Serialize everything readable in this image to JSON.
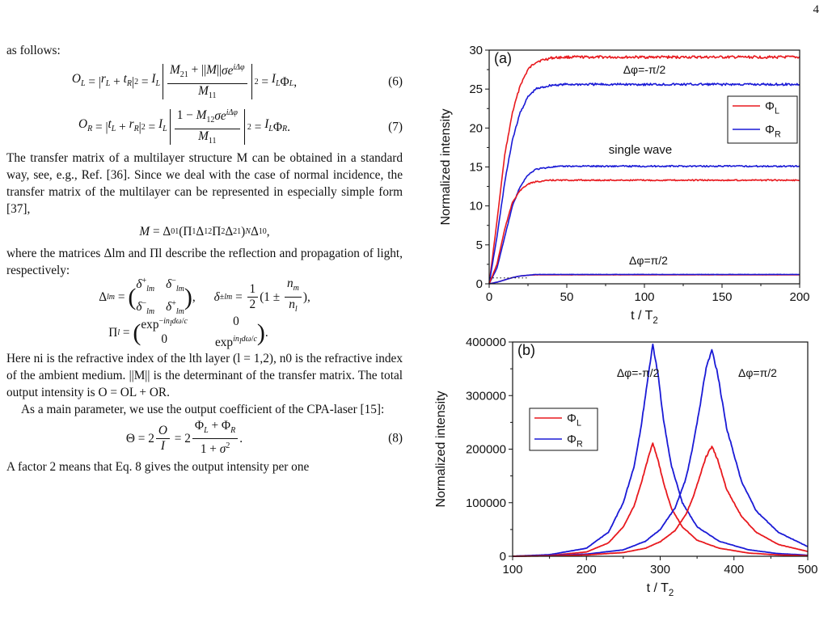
{
  "page_number": "4",
  "text": {
    "p_intro": "as follows:",
    "eq6_label": "(6)",
    "eq7_label": "(7)",
    "p_transfer": "The transfer matrix of a multilayer structure M can be obtained in a standard way, see, e.g., Ref. [36]. Since we deal with the case of normal incidence, the transfer matrix of the multilayer can be represented in especially simple form [37],",
    "p_matrices": "where the matrices Δlm and Πl describe the reflection and propagation of light, respectively:",
    "p_here": "Here ni is the refractive index of the lth layer (l = 1,2), n0 is the refractive index of the ambient medium. ||M|| is the determinant of the transfer matrix. The total output intensity is O = OL + OR.",
    "p_main": "As a main parameter, we use the output coefficient of the CPA-laser [15]:",
    "eq8_label": "(8)",
    "p_factor": "A factor 2 means that Eq. 8 gives the output intensity per one"
  },
  "chart_data": [
    {
      "type": "line",
      "panel_label": "(a)",
      "xlabel": "t / T2",
      "ylabel": "Normalized intensity",
      "xlim": [
        0,
        200
      ],
      "ylim": [
        0,
        30
      ],
      "xticks": [
        0,
        50,
        100,
        150,
        200
      ],
      "yticks": [
        0,
        5,
        10,
        15,
        20,
        25,
        30
      ],
      "legend_position": "right",
      "legend": [
        "ΦL",
        "ΦR"
      ],
      "annotations": [
        "Δφ=-π/2",
        "single wave",
        "Δφ=π/2"
      ],
      "colors": {
        "phi_L": "#e8191e",
        "phi_R": "#1a1ad6"
      },
      "series": [
        {
          "name": "ΦL",
          "group": "Δφ=-π/2",
          "x": [
            0,
            5,
            10,
            15,
            20,
            25,
            30,
            40,
            50,
            75,
            100,
            150,
            200
          ],
          "y": [
            0,
            8,
            16.5,
            22,
            25.5,
            27.5,
            28.5,
            29,
            29.1,
            29.1,
            29.1,
            29.1,
            29.1
          ]
        },
        {
          "name": "ΦR",
          "group": "Δφ=-π/2",
          "x": [
            0,
            5,
            10,
            15,
            20,
            25,
            30,
            40,
            50,
            75,
            100,
            150,
            200
          ],
          "y": [
            0,
            6,
            13,
            18.5,
            22,
            24,
            25,
            25.5,
            25.6,
            25.6,
            25.6,
            25.6,
            25.6
          ]
        },
        {
          "name": "ΦR",
          "group": "single wave",
          "x": [
            0,
            5,
            10,
            15,
            20,
            25,
            30,
            40,
            50,
            75,
            100,
            150,
            200
          ],
          "y": [
            0,
            2,
            6,
            10,
            12.5,
            14,
            14.7,
            15,
            15.1,
            15.1,
            15.1,
            15.1,
            15.1
          ]
        },
        {
          "name": "ΦL",
          "group": "single wave",
          "x": [
            0,
            5,
            10,
            15,
            20,
            25,
            30,
            40,
            50,
            75,
            100,
            150,
            200
          ],
          "y": [
            0,
            2.5,
            7,
            10.5,
            12,
            12.8,
            13.1,
            13.3,
            13.3,
            13.3,
            13.3,
            13.3,
            13.3
          ]
        },
        {
          "name": "ΦL",
          "group": "Δφ=π/2",
          "x": [
            0,
            5,
            10,
            15,
            20,
            25,
            30,
            40,
            50,
            75,
            100,
            150,
            200
          ],
          "y": [
            0,
            0.2,
            0.5,
            0.8,
            1.0,
            1.1,
            1.15,
            1.15,
            1.15,
            1.15,
            1.15,
            1.15,
            1.15
          ]
        },
        {
          "name": "ΦR",
          "group": "Δφ=π/2",
          "x": [
            0,
            5,
            10,
            15,
            20,
            25,
            30,
            40,
            50,
            75,
            100,
            150,
            200
          ],
          "y": [
            0,
            0.2,
            0.5,
            0.8,
            1.0,
            1.1,
            1.2,
            1.2,
            1.2,
            1.2,
            1.2,
            1.2,
            1.2
          ]
        }
      ]
    },
    {
      "type": "line",
      "panel_label": "(b)",
      "xlabel": "t / T2",
      "ylabel": "Normalized intensity",
      "xlim": [
        100,
        500
      ],
      "ylim": [
        0,
        400000
      ],
      "xticks": [
        100,
        200,
        300,
        400,
        500
      ],
      "yticks": [
        0,
        100000,
        200000,
        300000,
        400000
      ],
      "legend_position": "left",
      "legend": [
        "ΦL",
        "ΦR"
      ],
      "annotations": [
        "Δφ=-π/2",
        "Δφ=π/2"
      ],
      "colors": {
        "phi_L": "#e8191e",
        "phi_R": "#1a1ad6"
      },
      "series": [
        {
          "name": "ΦR",
          "group": "Δφ=-π/2",
          "x": [
            100,
            150,
            200,
            230,
            250,
            265,
            275,
            283,
            290,
            297,
            305,
            315,
            330,
            350,
            380,
            420,
            460,
            500
          ],
          "y": [
            0,
            3000,
            15000,
            45000,
            100000,
            170000,
            250000,
            330000,
            395000,
            340000,
            250000,
            170000,
            100000,
            55000,
            28000,
            12000,
            5000,
            2000
          ]
        },
        {
          "name": "ΦL",
          "group": "Δφ=-π/2",
          "x": [
            100,
            150,
            200,
            230,
            250,
            265,
            275,
            283,
            290,
            297,
            305,
            315,
            330,
            350,
            380,
            420,
            460,
            500
          ],
          "y": [
            0,
            1500,
            8000,
            25000,
            55000,
            95000,
            140000,
            180000,
            212000,
            180000,
            135000,
            90000,
            55000,
            30000,
            15000,
            6000,
            2500,
            1000
          ]
        },
        {
          "name": "ΦR",
          "group": "Δφ=π/2",
          "x": [
            100,
            150,
            200,
            250,
            280,
            300,
            320,
            335,
            345,
            355,
            362,
            370,
            378,
            390,
            410,
            430,
            460,
            500
          ],
          "y": [
            0,
            1500,
            4000,
            12000,
            28000,
            50000,
            90000,
            145000,
            210000,
            290000,
            350000,
            385000,
            340000,
            240000,
            140000,
            85000,
            45000,
            18000
          ]
        },
        {
          "name": "ΦL",
          "group": "Δφ=π/2",
          "x": [
            100,
            150,
            200,
            250,
            280,
            300,
            320,
            335,
            345,
            355,
            362,
            370,
            378,
            390,
            410,
            430,
            460,
            500
          ],
          "y": [
            0,
            800,
            2500,
            7000,
            15000,
            27000,
            48000,
            78000,
            112000,
            155000,
            185000,
            205000,
            180000,
            125000,
            75000,
            45000,
            22000,
            9000
          ]
        }
      ]
    }
  ]
}
